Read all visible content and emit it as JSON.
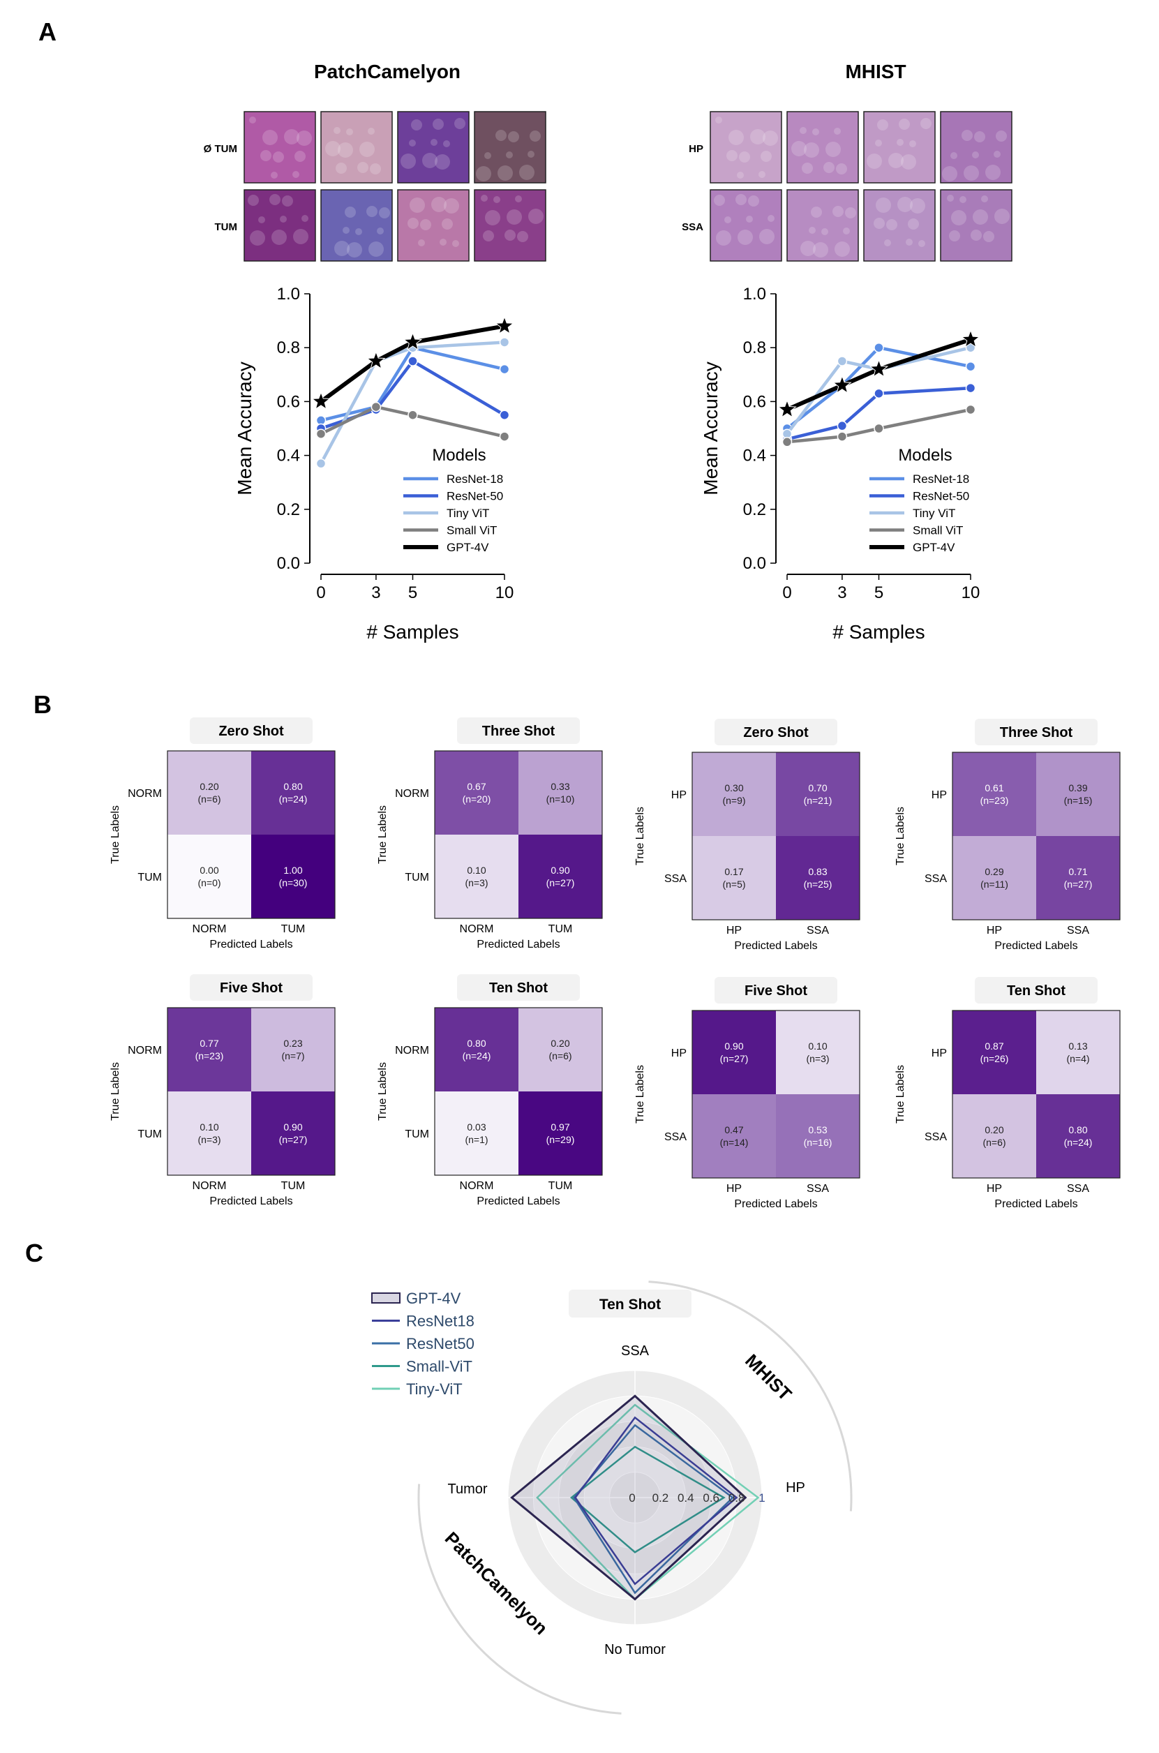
{
  "panels": {
    "a": "A",
    "b": "B",
    "c": "C"
  },
  "patchcam": {
    "title": "PatchCamelyon",
    "row_labels": [
      "Ø TUM",
      "TUM"
    ],
    "tile_colors": [
      [
        "#b05aa6",
        "#c9a0b6",
        "#6d3f9a",
        "#6f5060"
      ],
      [
        "#7c2f80",
        "#6a64b2",
        "#b978a8",
        "#8a3f8a"
      ]
    ]
  },
  "mhist": {
    "title": "MHIST",
    "row_labels": [
      "HP",
      "SSA"
    ],
    "tile_colors": [
      [
        "#c7a3c9",
        "#b889c0",
        "#c09ac6",
        "#a776b6"
      ],
      [
        "#b080bd",
        "#b78cc2",
        "#b691c4",
        "#a97cb9"
      ]
    ]
  },
  "chart_data": [
    {
      "type": "line",
      "title": "PatchCamelyon",
      "xlabel": "# Samples",
      "ylabel": "Mean Accuracy",
      "x": [
        0,
        3,
        5,
        10
      ],
      "xticks": [
        "0",
        "3",
        "5",
        "10"
      ],
      "ylim": [
        0,
        1
      ],
      "yticks": [
        "0.0",
        "0.2",
        "0.4",
        "0.6",
        "0.8",
        "1.0"
      ],
      "legend_title": "Models",
      "series": [
        {
          "name": "ResNet-18",
          "color": "#5b8fe6",
          "marker": "circle",
          "values": [
            0.53,
            0.58,
            0.8,
            0.72
          ]
        },
        {
          "name": "ResNet-50",
          "color": "#3a5fd6",
          "marker": "circle",
          "values": [
            0.5,
            0.57,
            0.75,
            0.55
          ]
        },
        {
          "name": "Tiny ViT",
          "color": "#a8c4e6",
          "marker": "circle",
          "values": [
            0.37,
            0.75,
            0.8,
            0.82
          ]
        },
        {
          "name": "Small ViT",
          "color": "#7f7f7f",
          "marker": "circle",
          "values": [
            0.48,
            0.58,
            0.55,
            0.47
          ]
        },
        {
          "name": "GPT-4V",
          "color": "#000000",
          "marker": "star",
          "values": [
            0.6,
            0.75,
            0.82,
            0.88
          ]
        }
      ]
    },
    {
      "type": "line",
      "title": "MHIST",
      "xlabel": "# Samples",
      "ylabel": "Mean Accuracy",
      "x": [
        0,
        3,
        5,
        10
      ],
      "xticks": [
        "0",
        "3",
        "5",
        "10"
      ],
      "ylim": [
        0,
        1
      ],
      "yticks": [
        "0.0",
        "0.2",
        "0.4",
        "0.6",
        "0.8",
        "1.0"
      ],
      "legend_title": "Models",
      "series": [
        {
          "name": "ResNet-18",
          "color": "#5b8fe6",
          "marker": "circle",
          "values": [
            0.5,
            0.66,
            0.8,
            0.73
          ]
        },
        {
          "name": "ResNet-50",
          "color": "#3a5fd6",
          "marker": "circle",
          "values": [
            0.46,
            0.51,
            0.63,
            0.65
          ]
        },
        {
          "name": "Tiny ViT",
          "color": "#a8c4e6",
          "marker": "circle",
          "values": [
            0.48,
            0.75,
            0.72,
            0.8
          ]
        },
        {
          "name": "Small ViT",
          "color": "#7f7f7f",
          "marker": "circle",
          "values": [
            0.45,
            0.47,
            0.5,
            0.57
          ]
        },
        {
          "name": "GPT-4V",
          "color": "#000000",
          "marker": "star",
          "values": [
            0.57,
            0.66,
            0.72,
            0.83
          ]
        }
      ]
    },
    {
      "type": "heatmap",
      "title": "Zero Shot",
      "dataset": "PatchCamelyon",
      "ylabel": "True Labels",
      "xlabel": "Predicted Labels",
      "labels": [
        "NORM",
        "TUM"
      ],
      "values": [
        [
          0.2,
          0.8
        ],
        [
          0.0,
          1.0
        ]
      ],
      "counts": [
        "(n=6)",
        "(n=24)",
        "(n=0)",
        "(n=30)"
      ],
      "cell_text": [
        "0.20",
        "0.80",
        "0.00",
        "1.00"
      ]
    },
    {
      "type": "heatmap",
      "title": "Three Shot",
      "dataset": "PatchCamelyon",
      "ylabel": "True Labels",
      "xlabel": "Predicted Labels",
      "labels": [
        "NORM",
        "TUM"
      ],
      "values": [
        [
          0.67,
          0.33
        ],
        [
          0.1,
          0.9
        ]
      ],
      "counts": [
        "(n=20)",
        "(n=10)",
        "(n=3)",
        "(n=27)"
      ],
      "cell_text": [
        "0.67",
        "0.33",
        "0.10",
        "0.90"
      ]
    },
    {
      "type": "heatmap",
      "title": "Zero Shot",
      "dataset": "MHIST",
      "ylabel": "True Labels",
      "xlabel": "Predicted Labels",
      "labels": [
        "HP",
        "SSA"
      ],
      "values": [
        [
          0.3,
          0.7
        ],
        [
          0.17,
          0.83
        ]
      ],
      "counts": [
        "(n=9)",
        "(n=21)",
        "(n=5)",
        "(n=25)"
      ],
      "cell_text": [
        "0.30",
        "0.70",
        "0.17",
        "0.83"
      ]
    },
    {
      "type": "heatmap",
      "title": "Three Shot",
      "dataset": "MHIST",
      "ylabel": "True Labels",
      "xlabel": "Predicted Labels",
      "labels": [
        "HP",
        "SSA"
      ],
      "values": [
        [
          0.61,
          0.39
        ],
        [
          0.29,
          0.71
        ]
      ],
      "counts": [
        "(n=23)",
        "(n=15)",
        "(n=11)",
        "(n=27)"
      ],
      "cell_text": [
        "0.61",
        "0.39",
        "0.29",
        "0.71"
      ]
    },
    {
      "type": "heatmap",
      "title": "Five Shot",
      "dataset": "PatchCamelyon",
      "ylabel": "True Labels",
      "xlabel": "Predicted Labels",
      "labels": [
        "NORM",
        "TUM"
      ],
      "values": [
        [
          0.77,
          0.23
        ],
        [
          0.1,
          0.9
        ]
      ],
      "counts": [
        "(n=23)",
        "(n=7)",
        "(n=3)",
        "(n=27)"
      ],
      "cell_text": [
        "0.77",
        "0.23",
        "0.10",
        "0.90"
      ]
    },
    {
      "type": "heatmap",
      "title": "Ten Shot",
      "dataset": "PatchCamelyon",
      "ylabel": "True Labels",
      "xlabel": "Predicted Labels",
      "labels": [
        "NORM",
        "TUM"
      ],
      "values": [
        [
          0.8,
          0.2
        ],
        [
          0.03,
          0.97
        ]
      ],
      "counts": [
        "(n=24)",
        "(n=6)",
        "(n=1)",
        "(n=29)"
      ],
      "cell_text": [
        "0.80",
        "0.20",
        "0.03",
        "0.97"
      ]
    },
    {
      "type": "heatmap",
      "title": "Five Shot",
      "dataset": "MHIST",
      "ylabel": "True Labels",
      "xlabel": "Predicted Labels",
      "labels": [
        "HP",
        "SSA"
      ],
      "values": [
        [
          0.9,
          0.1
        ],
        [
          0.47,
          0.53
        ]
      ],
      "counts": [
        "(n=27)",
        "(n=3)",
        "(n=14)",
        "(n=16)"
      ],
      "cell_text": [
        "0.90",
        "0.10",
        "0.47",
        "0.53"
      ]
    },
    {
      "type": "heatmap",
      "title": "Ten Shot",
      "dataset": "MHIST",
      "ylabel": "True Labels",
      "xlabel": "Predicted Labels",
      "labels": [
        "HP",
        "SSA"
      ],
      "values": [
        [
          0.87,
          0.13
        ],
        [
          0.2,
          0.8
        ]
      ],
      "counts": [
        "(n=26)",
        "(n=4)",
        "(n=6)",
        "(n=24)"
      ],
      "cell_text": [
        "0.87",
        "0.13",
        "0.20",
        "0.80"
      ]
    },
    {
      "type": "radar",
      "title": "Ten Shot",
      "axes": [
        "SSA",
        "HP",
        "No Tumor",
        "Tumor"
      ],
      "rlim": [
        0,
        1
      ],
      "rticks": [
        "0",
        "0.2",
        "0.4",
        "0.6",
        "0.8",
        "1"
      ],
      "group_labels": [
        "MHIST",
        "PatchCamelyon"
      ],
      "series": [
        {
          "name": "GPT-4V",
          "color": "#2b2450",
          "fill": true,
          "values": [
            0.8,
            0.87,
            0.8,
            0.97
          ]
        },
        {
          "name": "ResNet18",
          "color": "#3b3f9a",
          "values": [
            0.63,
            0.8,
            0.68,
            0.47
          ]
        },
        {
          "name": "ResNet50",
          "color": "#3a6fa6",
          "values": [
            0.57,
            0.77,
            0.75,
            0.48
          ]
        },
        {
          "name": "Small-ViT",
          "color": "#2f9a8c",
          "values": [
            0.4,
            0.7,
            0.43,
            0.5
          ]
        },
        {
          "name": "Tiny-ViT",
          "color": "#72d0b5",
          "values": [
            0.73,
            0.97,
            0.8,
            0.77
          ]
        }
      ]
    }
  ]
}
